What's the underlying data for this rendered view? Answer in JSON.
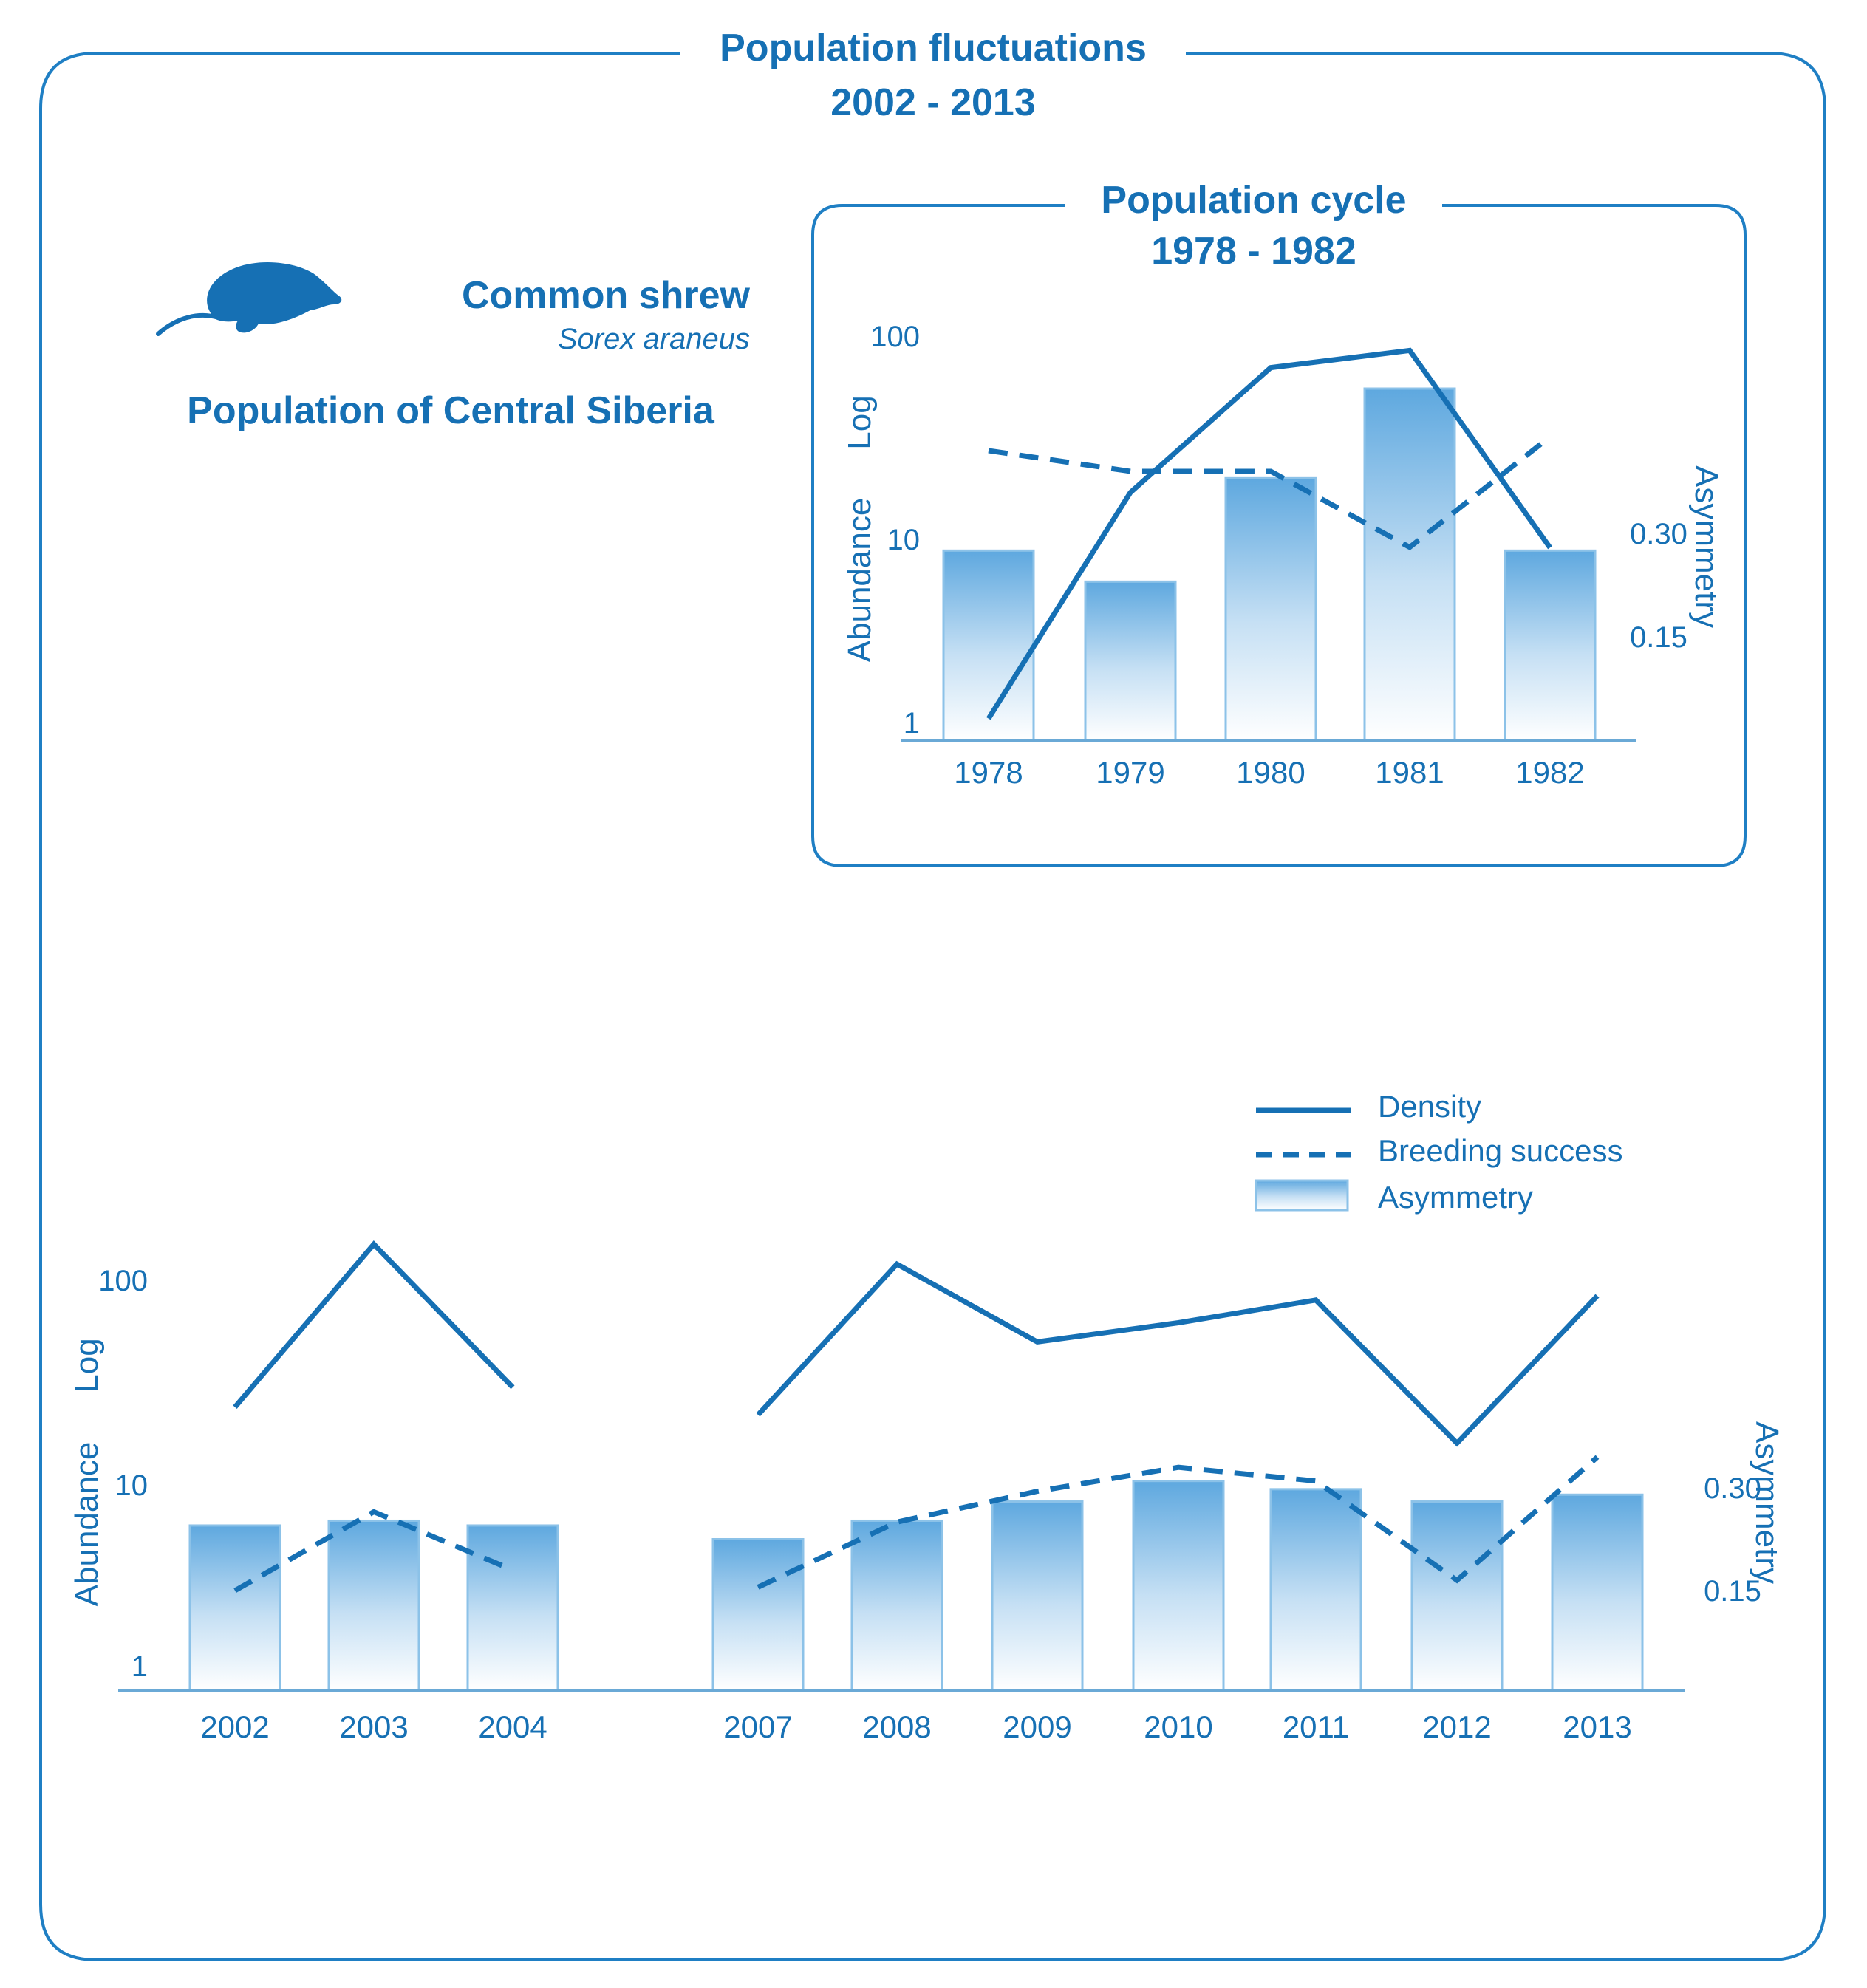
{
  "header": {
    "title_line1": "Population fluctuations",
    "title_line2": "2002 - 2013"
  },
  "species": {
    "common_name": "Common shrew",
    "latin_name": "Sorex araneus",
    "population": "Population of Central Siberia",
    "icon": "shrew-silhouette-icon"
  },
  "colors": {
    "primary": "#1670b4",
    "frame": "#1f7fc4",
    "bar_top": "#5ea8df",
    "bar_bottom": "#ffffff",
    "bar_edge": "#8cc2e8",
    "axis": "#6aa9d6",
    "background": "#ffffff"
  },
  "legend": {
    "density": "Density",
    "breeding": "Breeding success",
    "asymmetry": "Asymmetry"
  },
  "chart_data": [
    {
      "id": "inset",
      "type": "bar+line",
      "title_line1": "Population cycle",
      "title_line2": "1978 - 1982",
      "categories": [
        "1978",
        "1979",
        "1980",
        "1981",
        "1982"
      ],
      "ylabel_left_main": "Abundance",
      "ylabel_left_log": "Log",
      "ylabel_right": "Asymmetry",
      "left_axis": {
        "scale": "log",
        "ticks": [
          1,
          10,
          100
        ],
        "tick_labels": [
          "1",
          "10",
          "100"
        ]
      },
      "right_axis": {
        "ticks": [
          0.15,
          0.3
        ],
        "tick_labels": [
          "0.15",
          "0.30"
        ]
      },
      "series": [
        {
          "name": "Density",
          "style": "solid",
          "axis": "left",
          "values": [
            1.05,
            17,
            70,
            85,
            9
          ]
        },
        {
          "name": "Breeding success",
          "style": "dashed",
          "axis": "right",
          "values": [
            0.42,
            0.39,
            0.39,
            0.28,
            0.44
          ]
        },
        {
          "name": "Asymmetry",
          "style": "bar",
          "axis": "right",
          "values": [
            0.275,
            0.23,
            0.38,
            0.51,
            0.275
          ]
        }
      ]
    },
    {
      "id": "main",
      "type": "bar+line",
      "categories": [
        "2002",
        "2003",
        "2004",
        "2007",
        "2008",
        "2009",
        "2010",
        "2011",
        "2012",
        "2013"
      ],
      "ylabel_left_main": "Abundance",
      "ylabel_left_log": "Log",
      "ylabel_right": "Asymmetry",
      "left_axis": {
        "scale": "log",
        "ticks": [
          1,
          10,
          100
        ],
        "tick_labels": [
          "1",
          "10",
          "100"
        ]
      },
      "right_axis": {
        "ticks": [
          0.15,
          0.3
        ],
        "tick_labels": [
          "0.15",
          "0.30"
        ]
      },
      "series": [
        {
          "name": "Density",
          "style": "solid",
          "axis": "left",
          "segments": [
            [
              0,
              1,
              2
            ],
            [
              3,
              4,
              5,
              6,
              7,
              8,
              9
            ]
          ],
          "values": [
            24,
            150,
            30,
            22,
            120,
            50,
            62,
            80,
            16,
            84
          ]
        },
        {
          "name": "Breeding success",
          "style": "dashed",
          "axis": "right",
          "segments": [
            [
              0,
              1,
              2
            ],
            [
              3,
              4,
              5,
              6,
              7,
              8,
              9
            ]
          ],
          "values": [
            0.15,
            0.265,
            0.18,
            0.155,
            0.25,
            0.295,
            0.33,
            0.31,
            0.165,
            0.345
          ]
        },
        {
          "name": "Asymmetry",
          "style": "bar",
          "axis": "right",
          "values": [
            0.245,
            0.252,
            0.245,
            0.225,
            0.252,
            0.28,
            0.31,
            0.298,
            0.28,
            0.29
          ]
        }
      ]
    }
  ]
}
